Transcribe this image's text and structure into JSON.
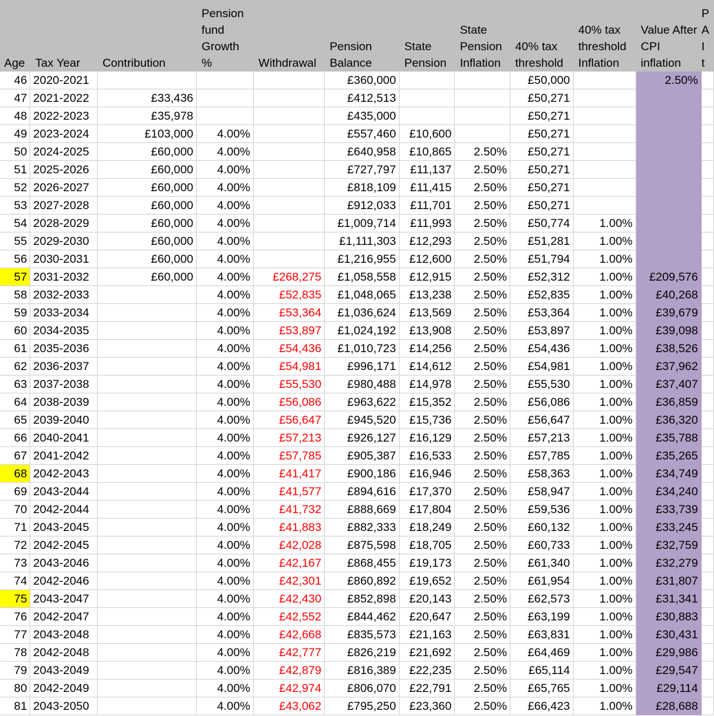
{
  "colors": {
    "header_bg": "#c0c0c0",
    "highlight": "#ffff00",
    "purple_column": "#b1a0c7",
    "withdrawal_text": "#ff0000"
  },
  "headers": [
    [
      "Age"
    ],
    [
      "Tax Year"
    ],
    [
      "Contribution"
    ],
    [
      "Pension",
      "fund",
      "Growth",
      "%"
    ],
    [
      "Withdrawal"
    ],
    [
      "Pension",
      "Balance"
    ],
    [
      "State",
      "Pension"
    ],
    [
      "State",
      "Pension",
      "Inflation"
    ],
    [
      "40% tax",
      "threshold"
    ],
    [
      "40% tax",
      "threshold",
      "Inflation"
    ],
    [
      "Value After",
      "CPI",
      "inflation"
    ],
    [
      "P",
      "A",
      "I",
      "t"
    ]
  ],
  "rows": [
    {
      "age": "46",
      "year": "2020-2021",
      "contribution": "",
      "growth": "",
      "withdrawal": "",
      "balance": "£360,000",
      "state": "",
      "state_infl": "",
      "threshold": "£50,000",
      "thr_infl": "",
      "value": "2.50%",
      "value_align": "r",
      "hl": false
    },
    {
      "age": "47",
      "year": "2021-2022",
      "contribution": "£33,436",
      "growth": "",
      "withdrawal": "",
      "balance": "£412,513",
      "state": "",
      "state_infl": "",
      "threshold": "£50,271",
      "thr_infl": "",
      "value": "",
      "hl": false
    },
    {
      "age": "48",
      "year": "2022-2023",
      "contribution": "£35,978",
      "growth": "",
      "withdrawal": "",
      "balance": "£435,000",
      "state": "",
      "state_infl": "",
      "threshold": "£50,271",
      "thr_infl": "",
      "value": "",
      "hl": false
    },
    {
      "age": "49",
      "year": "2023-2024",
      "contribution": "£103,000",
      "growth": "4.00%",
      "withdrawal": "",
      "balance": "£557,460",
      "state": "£10,600",
      "state_infl": "",
      "threshold": "£50,271",
      "thr_infl": "",
      "value": "",
      "hl": false
    },
    {
      "age": "50",
      "year": "2024-2025",
      "contribution": "£60,000",
      "growth": "4.00%",
      "withdrawal": "",
      "balance": "£640,958",
      "state": "£10,865",
      "state_infl": "2.50%",
      "threshold": "£50,271",
      "thr_infl": "",
      "value": "",
      "hl": false
    },
    {
      "age": "51",
      "year": "2025-2026",
      "contribution": "£60,000",
      "growth": "4.00%",
      "withdrawal": "",
      "balance": "£727,797",
      "state": "£11,137",
      "state_infl": "2.50%",
      "threshold": "£50,271",
      "thr_infl": "",
      "value": "",
      "hl": false
    },
    {
      "age": "52",
      "year": "2026-2027",
      "contribution": "£60,000",
      "growth": "4.00%",
      "withdrawal": "",
      "balance": "£818,109",
      "state": "£11,415",
      "state_infl": "2.50%",
      "threshold": "£50,271",
      "thr_infl": "",
      "value": "",
      "hl": false
    },
    {
      "age": "53",
      "year": "2027-2028",
      "contribution": "£60,000",
      "growth": "4.00%",
      "withdrawal": "",
      "balance": "£912,033",
      "state": "£11,701",
      "state_infl": "2.50%",
      "threshold": "£50,271",
      "thr_infl": "",
      "value": "",
      "hl": false
    },
    {
      "age": "54",
      "year": "2028-2029",
      "contribution": "£60,000",
      "growth": "4.00%",
      "withdrawal": "",
      "balance": "£1,009,714",
      "state": "£11,993",
      "state_infl": "2.50%",
      "threshold": "£50,774",
      "thr_infl": "1.00%",
      "value": "",
      "hl": false
    },
    {
      "age": "55",
      "year": "2029-2030",
      "contribution": "£60,000",
      "growth": "4.00%",
      "withdrawal": "",
      "balance": "£1,111,303",
      "state": "£12,293",
      "state_infl": "2.50%",
      "threshold": "£51,281",
      "thr_infl": "1.00%",
      "value": "",
      "hl": false
    },
    {
      "age": "56",
      "year": "2030-2031",
      "contribution": "£60,000",
      "growth": "4.00%",
      "withdrawal": "",
      "balance": "£1,216,955",
      "state": "£12,600",
      "state_infl": "2.50%",
      "threshold": "£51,794",
      "thr_infl": "1.00%",
      "value": "",
      "hl": false
    },
    {
      "age": "57",
      "year": "2031-2032",
      "contribution": "£60,000",
      "growth": "4.00%",
      "withdrawal": "£268,275",
      "balance": "£1,058,558",
      "state": "£12,915",
      "state_infl": "2.50%",
      "threshold": "£52,312",
      "thr_infl": "1.00%",
      "value": "£209,576",
      "hl": true
    },
    {
      "age": "58",
      "year": "2032-2033",
      "contribution": "",
      "growth": "4.00%",
      "withdrawal": "£52,835",
      "balance": "£1,048,065",
      "state": "£13,238",
      "state_infl": "2.50%",
      "threshold": "£52,835",
      "thr_infl": "1.00%",
      "value": "£40,268",
      "hl": false
    },
    {
      "age": "59",
      "year": "2033-2034",
      "contribution": "",
      "growth": "4.00%",
      "withdrawal": "£53,364",
      "balance": "£1,036,624",
      "state": "£13,569",
      "state_infl": "2.50%",
      "threshold": "£53,364",
      "thr_infl": "1.00%",
      "value": "£39,679",
      "hl": false
    },
    {
      "age": "60",
      "year": "2034-2035",
      "contribution": "",
      "growth": "4.00%",
      "withdrawal": "£53,897",
      "balance": "£1,024,192",
      "state": "£13,908",
      "state_infl": "2.50%",
      "threshold": "£53,897",
      "thr_infl": "1.00%",
      "value": "£39,098",
      "hl": false
    },
    {
      "age": "61",
      "year": "2035-2036",
      "contribution": "",
      "growth": "4.00%",
      "withdrawal": "£54,436",
      "balance": "£1,010,723",
      "state": "£14,256",
      "state_infl": "2.50%",
      "threshold": "£54,436",
      "thr_infl": "1.00%",
      "value": "£38,526",
      "hl": false
    },
    {
      "age": "62",
      "year": "2036-2037",
      "contribution": "",
      "growth": "4.00%",
      "withdrawal": "£54,981",
      "balance": "£996,171",
      "state": "£14,612",
      "state_infl": "2.50%",
      "threshold": "£54,981",
      "thr_infl": "1.00%",
      "value": "£37,962",
      "hl": false
    },
    {
      "age": "63",
      "year": "2037-2038",
      "contribution": "",
      "growth": "4.00%",
      "withdrawal": "£55,530",
      "balance": "£980,488",
      "state": "£14,978",
      "state_infl": "2.50%",
      "threshold": "£55,530",
      "thr_infl": "1.00%",
      "value": "£37,407",
      "hl": false
    },
    {
      "age": "64",
      "year": "2038-2039",
      "contribution": "",
      "growth": "4.00%",
      "withdrawal": "£56,086",
      "balance": "£963,622",
      "state": "£15,352",
      "state_infl": "2.50%",
      "threshold": "£56,086",
      "thr_infl": "1.00%",
      "value": "£36,859",
      "hl": false
    },
    {
      "age": "65",
      "year": "2039-2040",
      "contribution": "",
      "growth": "4.00%",
      "withdrawal": "£56,647",
      "balance": "£945,520",
      "state": "£15,736",
      "state_infl": "2.50%",
      "threshold": "£56,647",
      "thr_infl": "1.00%",
      "value": "£36,320",
      "hl": false
    },
    {
      "age": "66",
      "year": "2040-2041",
      "contribution": "",
      "growth": "4.00%",
      "withdrawal": "£57,213",
      "balance": "£926,127",
      "state": "£16,129",
      "state_infl": "2.50%",
      "threshold": "£57,213",
      "thr_infl": "1.00%",
      "value": "£35,788",
      "hl": false
    },
    {
      "age": "67",
      "year": "2041-2042",
      "contribution": "",
      "growth": "4.00%",
      "withdrawal": "£57,785",
      "balance": "£905,387",
      "state": "£16,533",
      "state_infl": "2.50%",
      "threshold": "£57,785",
      "thr_infl": "1.00%",
      "value": "£35,265",
      "hl": false
    },
    {
      "age": "68",
      "year": "2042-2043",
      "contribution": "",
      "growth": "4.00%",
      "withdrawal": "£41,417",
      "balance": "£900,186",
      "state": "£16,946",
      "state_infl": "2.50%",
      "threshold": "£58,363",
      "thr_infl": "1.00%",
      "value": "£34,749",
      "hl": true
    },
    {
      "age": "69",
      "year": "2043-2044",
      "contribution": "",
      "growth": "4.00%",
      "withdrawal": "£41,577",
      "balance": "£894,616",
      "state": "£17,370",
      "state_infl": "2.50%",
      "threshold": "£58,947",
      "thr_infl": "1.00%",
      "value": "£34,240",
      "hl": false
    },
    {
      "age": "70",
      "year": "2042-2044",
      "contribution": "",
      "growth": "4.00%",
      "withdrawal": "£41,732",
      "balance": "£888,669",
      "state": "£17,804",
      "state_infl": "2.50%",
      "threshold": "£59,536",
      "thr_infl": "1.00%",
      "value": "£33,739",
      "hl": false
    },
    {
      "age": "71",
      "year": "2043-2045",
      "contribution": "",
      "growth": "4.00%",
      "withdrawal": "£41,883",
      "balance": "£882,333",
      "state": "£18,249",
      "state_infl": "2.50%",
      "threshold": "£60,132",
      "thr_infl": "1.00%",
      "value": "£33,245",
      "hl": false
    },
    {
      "age": "72",
      "year": "2042-2045",
      "contribution": "",
      "growth": "4.00%",
      "withdrawal": "£42,028",
      "balance": "£875,598",
      "state": "£18,705",
      "state_infl": "2.50%",
      "threshold": "£60,733",
      "thr_infl": "1.00%",
      "value": "£32,759",
      "hl": false
    },
    {
      "age": "73",
      "year": "2043-2046",
      "contribution": "",
      "growth": "4.00%",
      "withdrawal": "£42,167",
      "balance": "£868,455",
      "state": "£19,173",
      "state_infl": "2.50%",
      "threshold": "£61,340",
      "thr_infl": "1.00%",
      "value": "£32,279",
      "hl": false
    },
    {
      "age": "74",
      "year": "2042-2046",
      "contribution": "",
      "growth": "4.00%",
      "withdrawal": "£42,301",
      "balance": "£860,892",
      "state": "£19,652",
      "state_infl": "2.50%",
      "threshold": "£61,954",
      "thr_infl": "1.00%",
      "value": "£31,807",
      "hl": false
    },
    {
      "age": "75",
      "year": "2043-2047",
      "contribution": "",
      "growth": "4.00%",
      "withdrawal": "£42,430",
      "balance": "£852,898",
      "state": "£20,143",
      "state_infl": "2.50%",
      "threshold": "£62,573",
      "thr_infl": "1.00%",
      "value": "£31,341",
      "hl": true
    },
    {
      "age": "76",
      "year": "2042-2047",
      "contribution": "",
      "growth": "4.00%",
      "withdrawal": "£42,552",
      "balance": "£844,462",
      "state": "£20,647",
      "state_infl": "2.50%",
      "threshold": "£63,199",
      "thr_infl": "1.00%",
      "value": "£30,883",
      "hl": false
    },
    {
      "age": "77",
      "year": "2043-2048",
      "contribution": "",
      "growth": "4.00%",
      "withdrawal": "£42,668",
      "balance": "£835,573",
      "state": "£21,163",
      "state_infl": "2.50%",
      "threshold": "£63,831",
      "thr_infl": "1.00%",
      "value": "£30,431",
      "hl": false
    },
    {
      "age": "78",
      "year": "2042-2048",
      "contribution": "",
      "growth": "4.00%",
      "withdrawal": "£42,777",
      "balance": "£826,219",
      "state": "£21,692",
      "state_infl": "2.50%",
      "threshold": "£64,469",
      "thr_infl": "1.00%",
      "value": "£29,986",
      "hl": false
    },
    {
      "age": "79",
      "year": "2043-2049",
      "contribution": "",
      "growth": "4.00%",
      "withdrawal": "£42,879",
      "balance": "£816,389",
      "state": "£22,235",
      "state_infl": "2.50%",
      "threshold": "£65,114",
      "thr_infl": "1.00%",
      "value": "£29,547",
      "hl": false
    },
    {
      "age": "80",
      "year": "2042-2049",
      "contribution": "",
      "growth": "4.00%",
      "withdrawal": "£42,974",
      "balance": "£806,070",
      "state": "£22,791",
      "state_infl": "2.50%",
      "threshold": "£65,765",
      "thr_infl": "1.00%",
      "value": "£29,114",
      "hl": false
    },
    {
      "age": "81",
      "year": "2043-2050",
      "contribution": "",
      "growth": "4.00%",
      "withdrawal": "£43,062",
      "balance": "£795,250",
      "state": "£23,360",
      "state_infl": "2.50%",
      "threshold": "£66,423",
      "thr_infl": "1.00%",
      "value": "£28,688",
      "hl": false
    }
  ]
}
